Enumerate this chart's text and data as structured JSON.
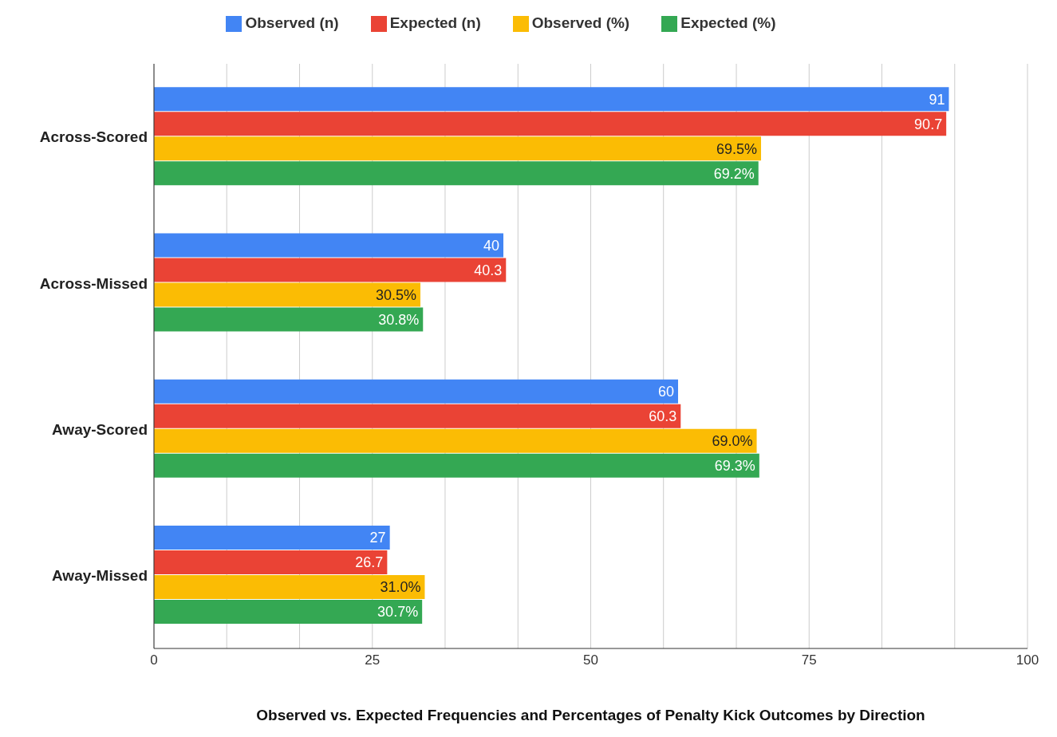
{
  "chart_data": {
    "type": "bar",
    "orientation": "horizontal",
    "xlabel": "Observed vs. Expected Frequencies and Percentages of Penalty Kick Outcomes by Direction",
    "categories": [
      "Across-Scored",
      "Across-Missed",
      "Away-Scored",
      "Away-Missed"
    ],
    "series": [
      {
        "name": "Observed (n)",
        "color": "#4285f4",
        "values": [
          91,
          40,
          60,
          27
        ],
        "value_labels": [
          "91",
          "40",
          "60",
          "27"
        ]
      },
      {
        "name": "Expected (n)",
        "color": "#ea4335",
        "values": [
          90.7,
          40.3,
          60.3,
          26.7
        ],
        "value_labels": [
          "90.7",
          "40.3",
          "60.3",
          "26.7"
        ]
      },
      {
        "name": "Observed (%)",
        "color": "#fbbc04",
        "values": [
          69.5,
          30.5,
          69.0,
          31.0
        ],
        "value_labels": [
          "69.5%",
          "30.5%",
          "69.0%",
          "31.0%"
        ]
      },
      {
        "name": "Expected (%)",
        "color": "#34a853",
        "values": [
          69.2,
          30.8,
          69.3,
          30.7
        ],
        "value_labels": [
          "69.2%",
          "30.8%",
          "69.3%",
          "30.7%"
        ]
      }
    ],
    "xlim": [
      0,
      100
    ],
    "xticks": [
      0,
      {
        "value": 8.33,
        "label": null
      },
      {
        "value": 16.67,
        "label": null
      },
      25,
      {
        "value": 33.33,
        "label": null
      },
      {
        "value": 41.67,
        "label": null
      },
      50,
      {
        "value": 58.33,
        "label": null
      },
      {
        "value": 66.67,
        "label": null
      },
      75,
      {
        "value": 83.33,
        "label": null
      },
      {
        "value": 91.67,
        "label": null
      },
      100
    ],
    "grid": "x",
    "legend": "top"
  }
}
